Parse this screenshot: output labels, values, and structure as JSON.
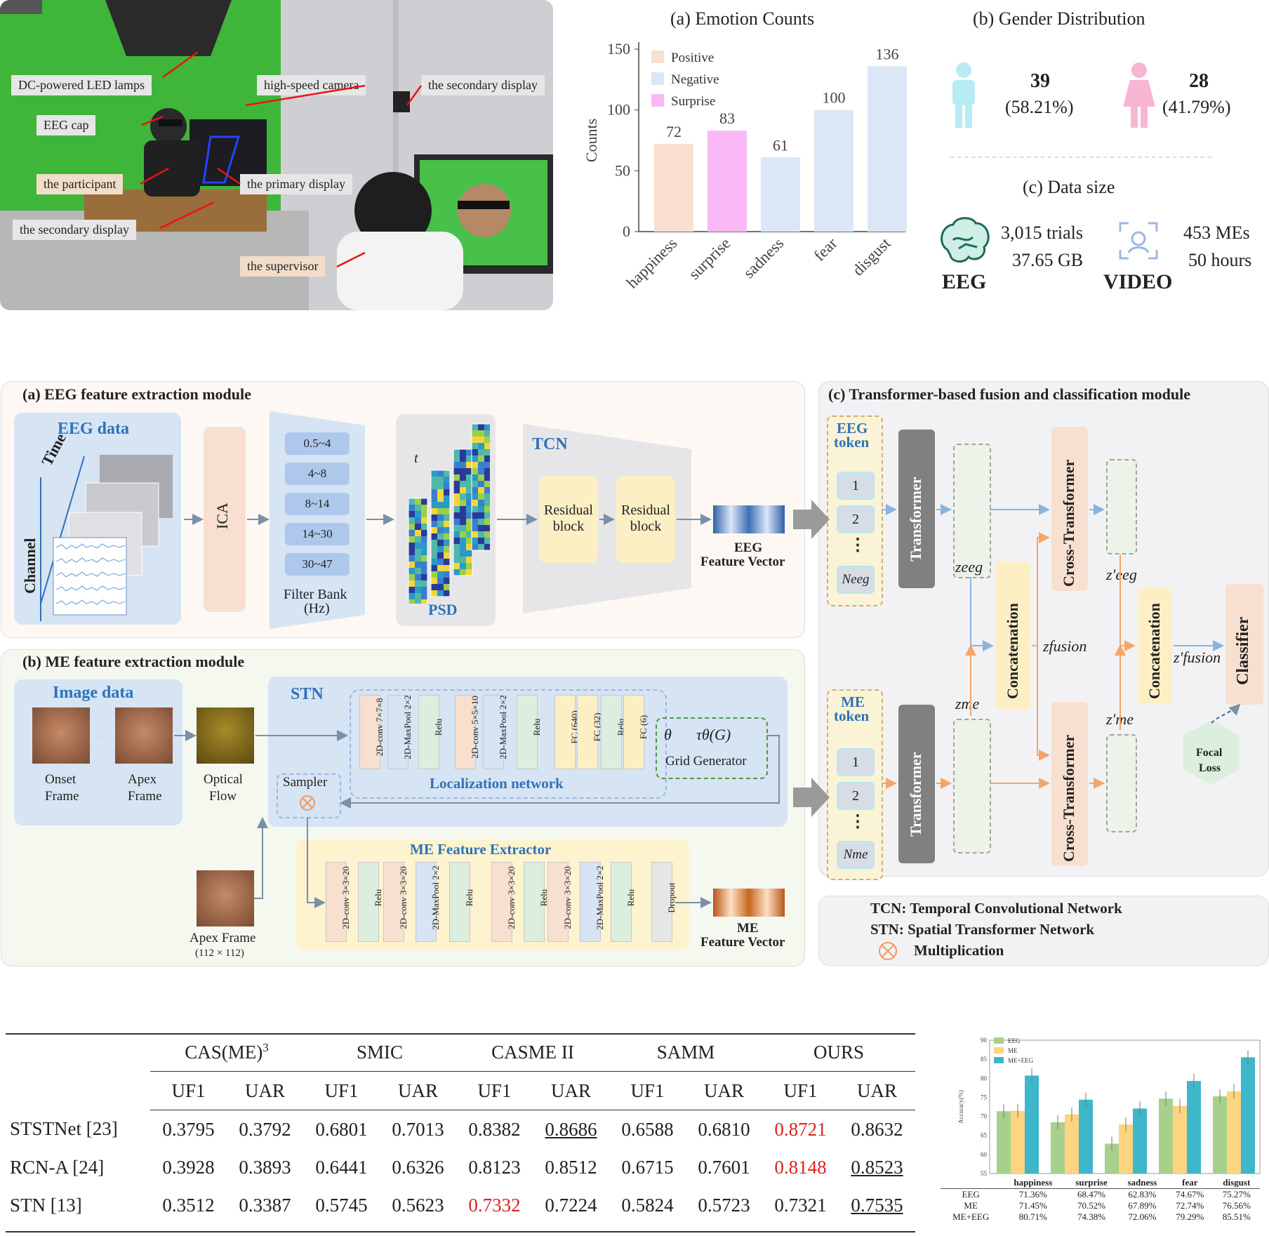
{
  "photo": {
    "labels": {
      "led": "DC-powered LED lamps",
      "camera": "high-speed camera",
      "secondary_top": "the secondary display",
      "cap": "EEG cap",
      "participant": "the participant",
      "primary": "the primary display",
      "secondary_bottom": "the secondary display",
      "supervisor": "the supervisor"
    }
  },
  "chart_data": [
    {
      "type": "bar",
      "title": "(a) Emotion Counts",
      "ylabel": "Counts",
      "ylim": [
        0,
        150
      ],
      "yticks": [
        "0",
        "50",
        "100",
        "150"
      ],
      "categories": [
        "happiness",
        "surprise",
        "sadness",
        "fear",
        "disgust"
      ],
      "values": [
        72,
        83,
        61,
        100,
        136
      ],
      "bar_groups": [
        "Positive",
        "Surprise",
        "Negative",
        "Negative",
        "Negative"
      ],
      "legend": [
        {
          "name": "Positive",
          "color": "#f9dfcf"
        },
        {
          "name": "Negative",
          "color": "#dbe7f6"
        },
        {
          "name": "Surprise",
          "color": "#f9b8f5"
        }
      ]
    },
    {
      "type": "bar",
      "title": "",
      "ylabel": "Accuracy(%)",
      "ylim": [
        55,
        90
      ],
      "yticks": [
        "55",
        "60",
        "65",
        "70",
        "75",
        "80",
        "85",
        "90"
      ],
      "categories": [
        "happiness",
        "surprise",
        "sadness",
        "fear",
        "disgust"
      ],
      "series": [
        {
          "name": "EEG",
          "values": [
            71.36,
            68.47,
            62.83,
            74.67,
            75.27
          ],
          "color": "#a8d08d"
        },
        {
          "name": "ME",
          "values": [
            71.45,
            70.52,
            67.89,
            72.74,
            76.56
          ],
          "color": "#fdd47f"
        },
        {
          "name": "ME+EEG",
          "values": [
            80.71,
            74.38,
            72.06,
            79.29,
            85.51
          ],
          "color": "#3db7c9"
        }
      ],
      "table": [
        {
          "name": "EEG",
          "cells": [
            "71.36%",
            "68.47%",
            "62.83%",
            "74.67%",
            "75.27%"
          ]
        },
        {
          "name": "ME",
          "cells": [
            "71.45%",
            "70.52%",
            "67.89%",
            "72.74%",
            "76.56%"
          ]
        },
        {
          "name": "ME+EEG",
          "cells": [
            "80.71%",
            "74.38%",
            "72.06%",
            "79.29%",
            "85.51%"
          ]
        }
      ]
    },
    {
      "type": "table",
      "datasets": [
        "CAS(ME)",
        "SMIC",
        "CASME II",
        "SAMM",
        "OURS"
      ],
      "dataset_superscript": "3",
      "metrics": [
        "UF1",
        "UAR"
      ],
      "rows": [
        {
          "method": "STSTNet [23]",
          "values": [
            "0.3795",
            "0.3792",
            "0.6801",
            "0.7013",
            "0.8382",
            "0.8686",
            "0.6588",
            "0.6810",
            "0.8721",
            "0.8632"
          ],
          "red": [
            8
          ],
          "underline": [
            5
          ]
        },
        {
          "method": "RCN-A [24]",
          "values": [
            "0.3928",
            "0.3893",
            "0.6441",
            "0.6326",
            "0.8123",
            "0.8512",
            "0.6715",
            "0.7601",
            "0.8148",
            "0.8523"
          ],
          "red": [
            8
          ],
          "underline": [
            9
          ]
        },
        {
          "method": "STN [13]",
          "values": [
            "0.3512",
            "0.3387",
            "0.5745",
            "0.5623",
            "0.7332",
            "0.7224",
            "0.5824",
            "0.5723",
            "0.7321",
            "0.7535"
          ],
          "red": [
            4
          ],
          "underline": [
            9
          ]
        }
      ]
    }
  ],
  "gender": {
    "title": "(b) Gender Distribution",
    "male_count": "39",
    "male_pct": "(58.21%)",
    "female_count": "28",
    "female_pct": "(41.79%)"
  },
  "datasize": {
    "title": "(c) Data size",
    "eeg_trials": "3,015 trials",
    "eeg_size": "37.65 GB",
    "eeg_label": "EEG",
    "video_mes": "453 MEs",
    "video_hours": "50 hours",
    "video_label": "VIDEO"
  },
  "diagram": {
    "a_title": "(a) EEG feature extraction module",
    "eeg_data": "EEG data",
    "time": "Time",
    "channel": "Channel",
    "ica": "ICA",
    "bands": [
      "0.5~4",
      "4~8",
      "8~14",
      "14~30",
      "30~47"
    ],
    "filter_bank": "Filter Bank",
    "hz": "(Hz)",
    "psd": "PSD",
    "t": "t",
    "tcn": "TCN",
    "residual": "Residual",
    "block": "block",
    "eeg_fv_1": "EEG",
    "eeg_fv_2": "Feature Vector",
    "b_title": "(b) ME feature extraction module",
    "image_data": "Image data",
    "onset_1": "Onset",
    "onset_2": "Frame",
    "apex_1": "Apex",
    "apex_2": "Frame",
    "flow_1": "Optical",
    "flow_2": "Flow",
    "stn": "STN",
    "loc_layers": [
      "2D-conv 7×7×8",
      "2D-MaxPool 2×2",
      "Relu",
      "2D-conv 5×5×10",
      "2D-MaxPool 2×2",
      "Relu",
      "FC (640)",
      "FC (32)",
      "Relu",
      "FC (6)"
    ],
    "loc_net": "Localization network",
    "theta": "θ",
    "tau": "τθ(G)",
    "grid_gen": "Grid Generator",
    "sampler": "Sampler",
    "apex_frame": "Apex Frame",
    "apex_size": "(112 × 112)",
    "me_extractor": "ME Feature Extractor",
    "me_layers": [
      "2D-conv 3×3×20",
      "Relu",
      "2D-conv 3×3×20",
      "2D-MaxPool 2×2",
      "Relu",
      "2D-conv 3×3×20",
      "Relu",
      "2D-conv 3×3×20",
      "2D-MaxPool 2×2",
      "Relu",
      "Dropout"
    ],
    "me_fv_1": "ME",
    "me_fv_2": "Feature Vector",
    "c_title": "(c) Transformer-based fusion and classification module",
    "eeg_token_1": "EEG",
    "eeg_token_2": "token",
    "me_token_1": "ME",
    "me_token_2": "token",
    "tok1": "1",
    "tok2": "2",
    "dots": "⋮",
    "n_eeg": "Neeg",
    "n_me": "Nme",
    "transformer": "Transformer",
    "cross_transformer": "Cross-Transformer",
    "concatenation": "Concatenation",
    "classifier": "Classifier",
    "focal_1": "Focal",
    "focal_2": "Loss",
    "z_eeg": "zeeg",
    "z_me": "zme",
    "z_fusion": "zfusion",
    "z_eeg_p": "z′eeg",
    "z_me_p": "z′me",
    "z_fusion_p": "z′fusion",
    "legend_tcn": "TCN: Temporal Convolutional Network",
    "legend_stn": "STN: Spatial Transformer Network",
    "legend_mul": "Multiplication"
  }
}
